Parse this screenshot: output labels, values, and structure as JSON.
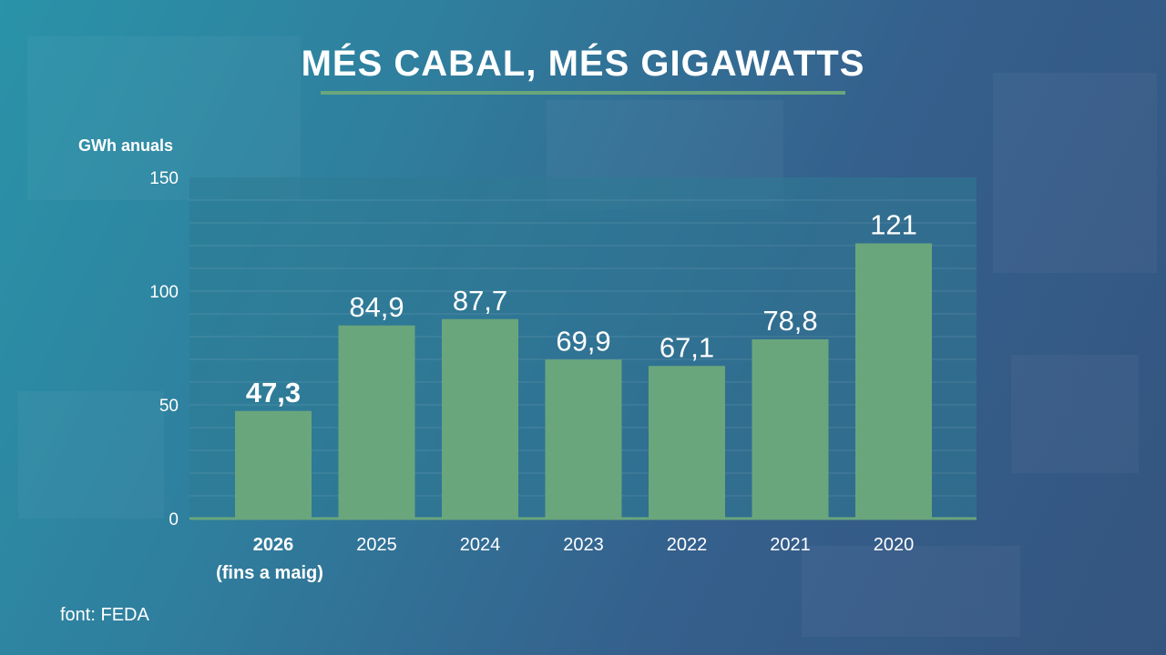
{
  "source": "font: FEDA",
  "colors": {
    "bar": "#6aa67c",
    "plot_bg": "#2d7a94",
    "accent_rule": "#6aa67c",
    "text": "#ffffff"
  },
  "chart_data": {
    "type": "bar",
    "title": "MÉS CABAL, MÉS GIGAWATTS",
    "ylabel": "GWh anuals",
    "xlabel": "",
    "categories": [
      "2026",
      "2025",
      "2024",
      "2023",
      "2022",
      "2021",
      "2020"
    ],
    "category_sublabels": [
      "(fins a maig)",
      "",
      "",
      "",
      "",
      "",
      ""
    ],
    "values": [
      47.3,
      84.9,
      87.7,
      69.9,
      67.1,
      78.8,
      121
    ],
    "value_labels": [
      "47,3",
      "84,9",
      "87,7",
      "69,9",
      "67,1",
      "78,8",
      "121"
    ],
    "highlight_index": 0,
    "ylim": [
      0,
      150
    ],
    "yticks": [
      0,
      50,
      100,
      150
    ],
    "grid": true,
    "legend": "none"
  }
}
